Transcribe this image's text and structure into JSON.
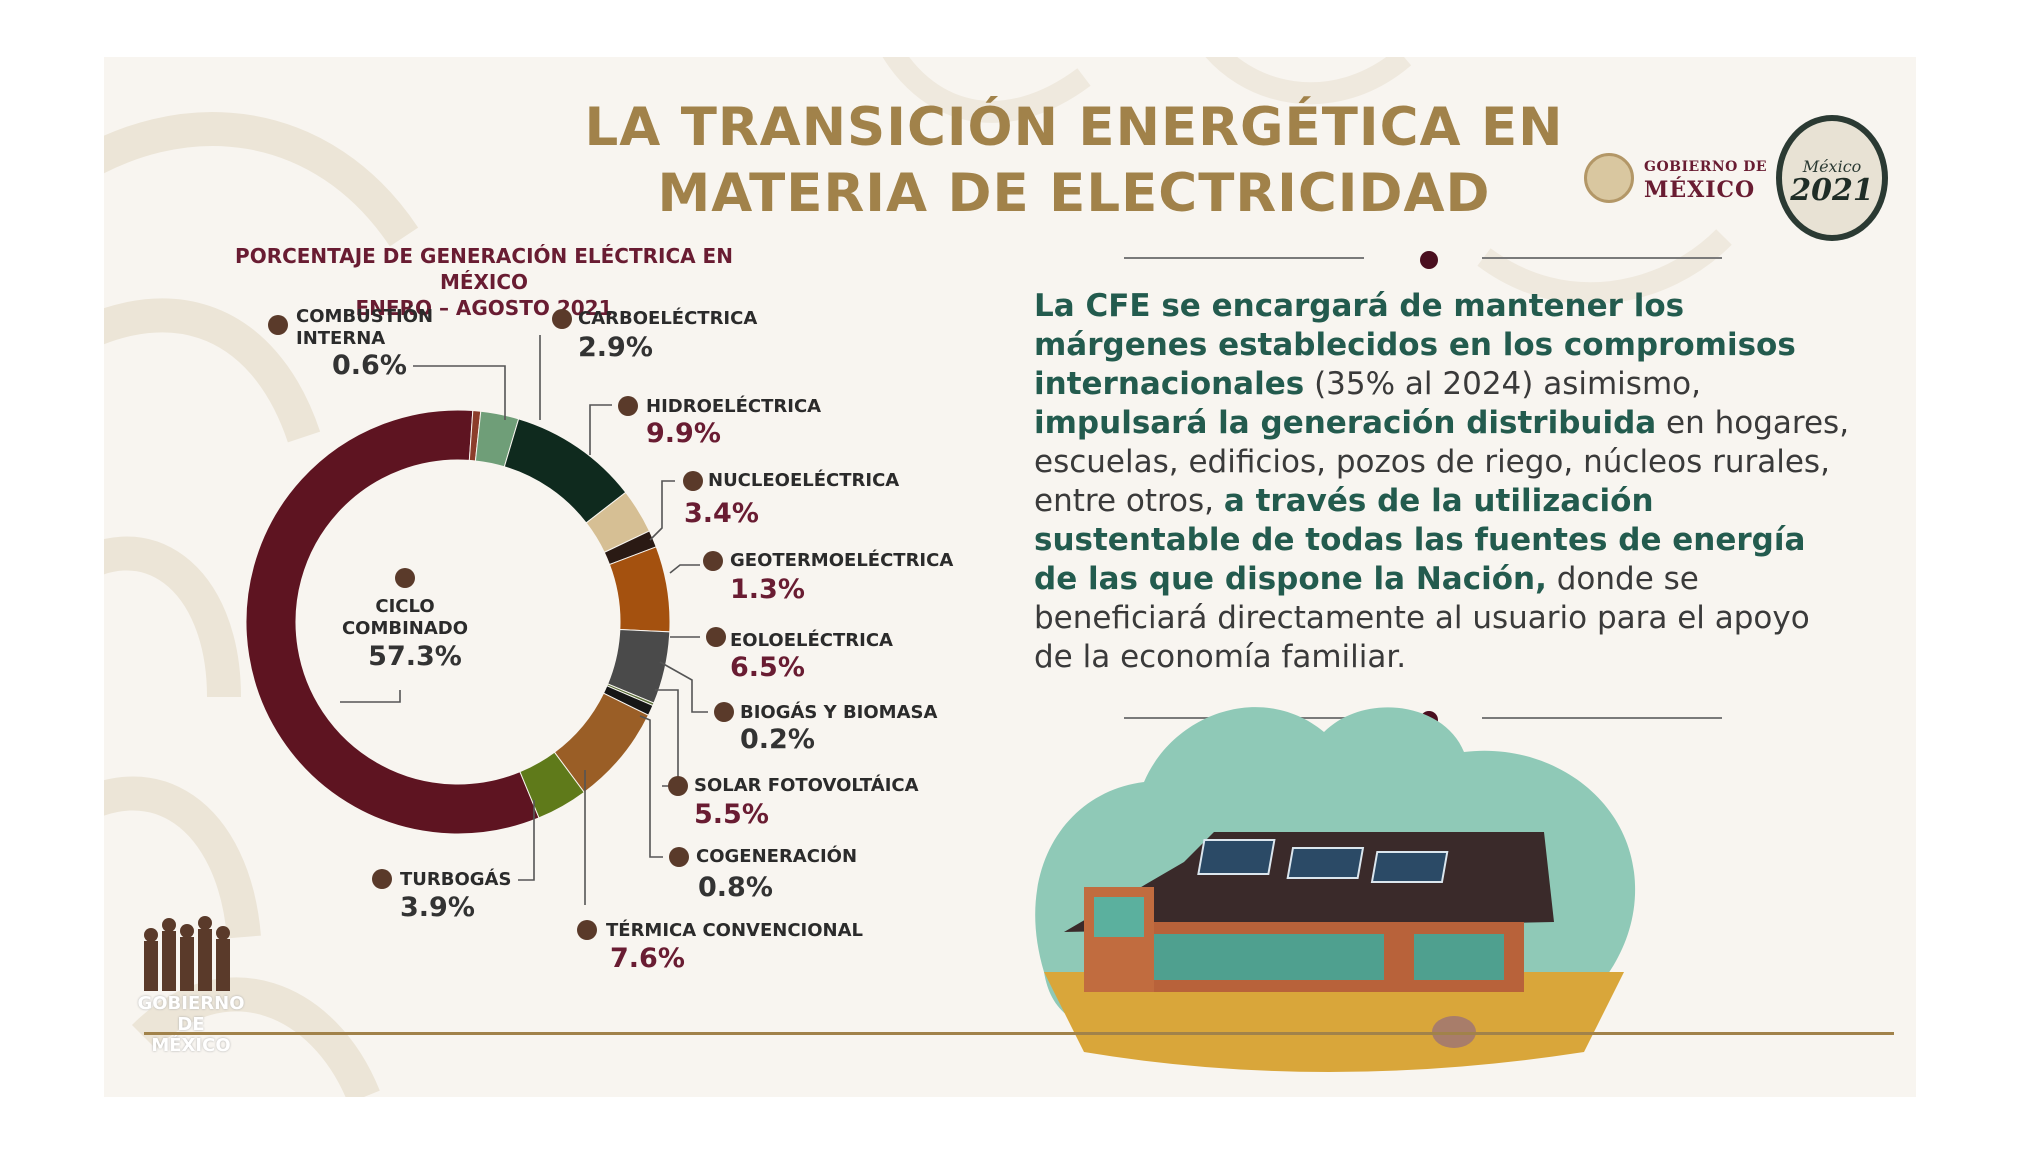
{
  "title_line1": "LA TRANSICIÓN ENERGÉTICA EN",
  "title_line2": "MATERIA DE ELECTRICIDAD",
  "header": {
    "gob_line1": "GOBIERNO DE",
    "gob_line2": "MÉXICO",
    "badge_line1": "México",
    "badge_line2": "2021"
  },
  "chart_data": {
    "type": "pie",
    "title": "PORCENTAJE DE GENERACIÓN ELÉCTRICA EN MÉXICO",
    "subtitle": "ENERO – AGOSTO 2021",
    "slices": [
      {
        "label": "CICLO COMBINADO",
        "value": 57.3,
        "value_label": "57.3%",
        "color": "#5e1421"
      },
      {
        "label": "COMBUSTIÓN INTERNA",
        "value": 0.6,
        "value_label": "0.6%",
        "color": "#8c3d2b"
      },
      {
        "label": "CARBOELÉCTRICA",
        "value": 2.9,
        "value_label": "2.9%",
        "color": "#6f9e78"
      },
      {
        "label": "HIDROELÉCTRICA",
        "value": 9.9,
        "value_label": "9.9%",
        "color": "#0f2a1e"
      },
      {
        "label": "NUCLEOELÉCTRICA",
        "value": 3.4,
        "value_label": "3.4%",
        "color": "#d6bf94"
      },
      {
        "label": "GEOTERMOELÉCTRICA",
        "value": 1.3,
        "value_label": "1.3%",
        "color": "#2a1a14"
      },
      {
        "label": "EOLOELÉCTRICA",
        "value": 6.5,
        "value_label": "6.5%",
        "color": "#a4510f"
      },
      {
        "label": "SOLAR FOTOVOLTÁICA",
        "value": 5.5,
        "value_label": "5.5%",
        "color": "#4a4a4a"
      },
      {
        "label": "BIOGÁS Y BIOMASA",
        "value": 0.2,
        "value_label": "0.2%",
        "color": "#5a6e3a"
      },
      {
        "label": "COGENERACIÓN",
        "value": 0.8,
        "value_label": "0.8%",
        "color": "#161616"
      },
      {
        "label": "TÉRMICA CONVENCIONAL",
        "value": 7.6,
        "value_label": "7.6%",
        "color": "#9a5e26"
      },
      {
        "label": "TURBOGÁS",
        "value": 3.9,
        "value_label": "3.9%",
        "color": "#5f7a1a"
      }
    ]
  },
  "paragraph": {
    "s1": "La CFE se encargará de mantener los márgenes establecidos en los compromisos internacionales",
    "s2": " (35% al 2024) asimismo, ",
    "s3": "impulsará la generación distribuida",
    "s4": " en hogares, escuelas, edificios, pozos de riego, núcleos rurales, entre otros, ",
    "s5": "a través de la utilización sustentable de todas las fuentes de energía de las que dispone la Nación,",
    "s6": " donde se beneficiará directamente al usuario para el apoyo de la economía familiar."
  },
  "footer": {
    "logo_text": "GOBIERNO DE MÉXICO"
  }
}
